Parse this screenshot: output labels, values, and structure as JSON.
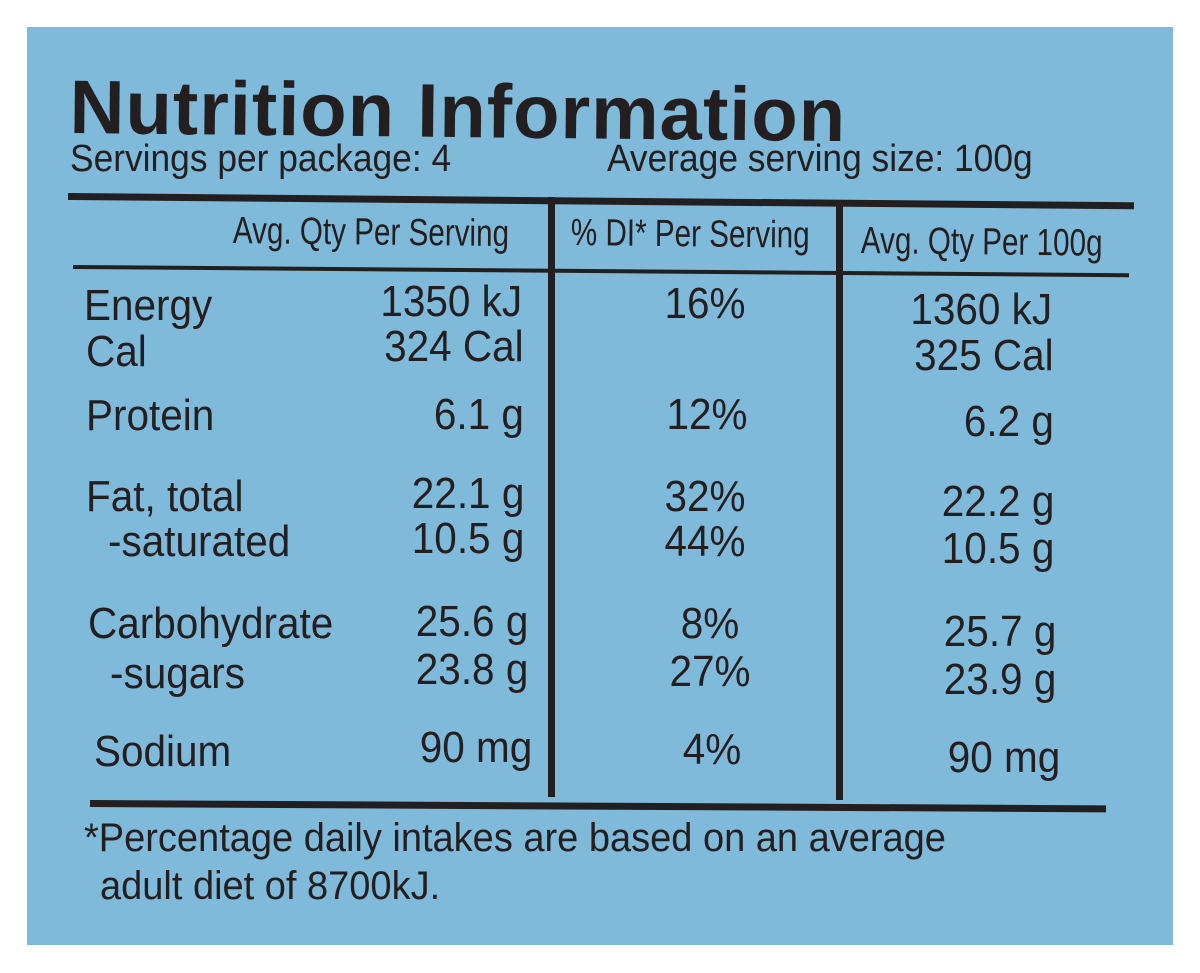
{
  "title": "Nutrition Information",
  "servings_per_package": "Servings per package: 4",
  "average_serving_size": "Average serving size: 100g",
  "columns": {
    "per_serving": "Avg. Qty Per Serving",
    "di_per_serving": "% DI* Per Serving",
    "per_100g": "Avg. Qty Per 100g"
  },
  "rows": [
    {
      "label": "Energy",
      "per_serving": "1350 kJ",
      "di": "16%",
      "per_100g": "1360 kJ"
    },
    {
      "label": "Cal",
      "per_serving": "324 Cal",
      "di": "",
      "per_100g": "325 Cal"
    },
    {
      "label": "Protein",
      "per_serving": "6.1 g",
      "di": "12%",
      "per_100g": "6.2 g"
    },
    {
      "label": "Fat, total",
      "per_serving": "22.1 g",
      "di": "32%",
      "per_100g": "22.2 g"
    },
    {
      "label": "-saturated",
      "per_serving": "10.5 g",
      "di": "44%",
      "per_100g": "10.5 g"
    },
    {
      "label": "Carbohydrate",
      "per_serving": "25.6 g",
      "di": "8%",
      "per_100g": "25.7 g"
    },
    {
      "label": "-sugars",
      "per_serving": "23.8 g",
      "di": "27%",
      "per_100g": "23.9 g"
    },
    {
      "label": "Sodium",
      "per_serving": "90 mg",
      "di": "4%",
      "per_100g": "90 mg"
    }
  ],
  "footnote": {
    "line1": "*Percentage daily intakes are based on an average",
    "line2": "adult diet of 8700kJ."
  },
  "colors": {
    "background": "#7fbada",
    "ink": "#231f20"
  }
}
